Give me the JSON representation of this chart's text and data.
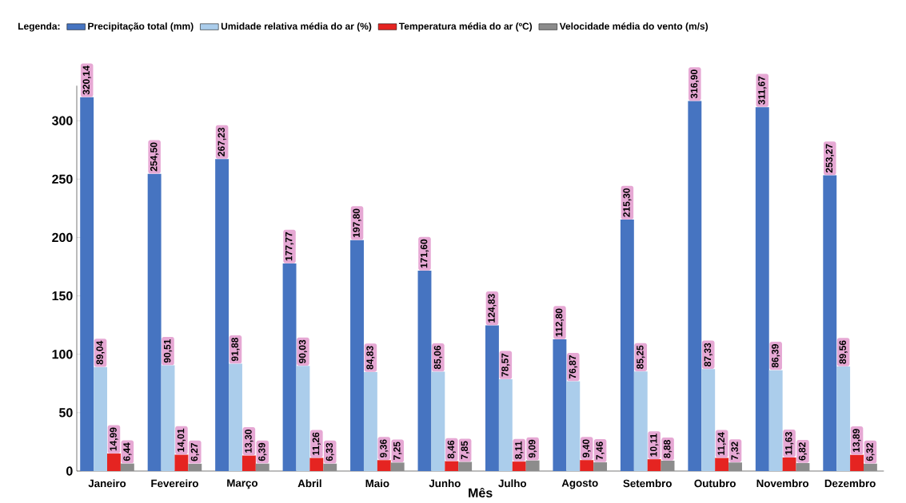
{
  "chart_data": {
    "type": "bar",
    "legend_title": "Legenda:",
    "xlabel": "Mês",
    "categories": [
      "Janeiro",
      "Fevereiro",
      "Março",
      "Abril",
      "Maio",
      "Junho",
      "Julho",
      "Agosto",
      "Setembro",
      "Outubro",
      "Novembro",
      "Dezembro"
    ],
    "series": [
      {
        "name": "Precipitação total (mm)",
        "color": "#4674c1",
        "values": [
          320.14,
          254.5,
          267.23,
          177.77,
          197.8,
          171.6,
          124.83,
          112.8,
          215.3,
          316.9,
          311.67,
          253.27
        ],
        "value_labels": [
          "320,14",
          "254,50",
          "267,23",
          "177,77",
          "197,80",
          "171,60",
          "124,83",
          "112,80",
          "215,30",
          "316,90",
          "311,67",
          "253,27"
        ]
      },
      {
        "name": "Umidade relativa média do ar (%)",
        "color": "#abcdeb",
        "values": [
          89.04,
          90.51,
          91.88,
          90.03,
          84.83,
          85.06,
          78.57,
          76.87,
          85.25,
          87.33,
          86.39,
          89.56
        ],
        "value_labels": [
          "89,04",
          "90,51",
          "91,88",
          "90,03",
          "84,83",
          "85,06",
          "78,57",
          "76,87",
          "85,25",
          "87,33",
          "86,39",
          "89,56"
        ]
      },
      {
        "name": "Temperatura média do ar (ºC)",
        "color": "#e52421",
        "values": [
          14.99,
          14.01,
          13.3,
          11.26,
          9.36,
          8.46,
          8.11,
          9.4,
          10.11,
          11.24,
          11.63,
          13.89
        ],
        "value_labels": [
          "14,99",
          "14,01",
          "13,30",
          "11,26",
          "9,36",
          "8,46",
          "8,11",
          "9,40",
          "10,11",
          "11,24",
          "11,63",
          "13,89"
        ]
      },
      {
        "name": "Velocidade média do vento (m/s)",
        "color": "#8c8c8c",
        "values": [
          6.44,
          6.27,
          6.39,
          6.33,
          7.25,
          7.85,
          9.09,
          7.46,
          8.88,
          7.32,
          6.82,
          6.32
        ],
        "value_labels": [
          "6,44",
          "6,27",
          "6,39",
          "6,33",
          "7,25",
          "7,85",
          "9,09",
          "7,46",
          "8,88",
          "7,32",
          "6,82",
          "6,32"
        ]
      }
    ],
    "ylim": [
      0,
      330
    ],
    "yticks": [
      0,
      50,
      100,
      150,
      200,
      250,
      300
    ],
    "grid": false,
    "legend": "top"
  }
}
